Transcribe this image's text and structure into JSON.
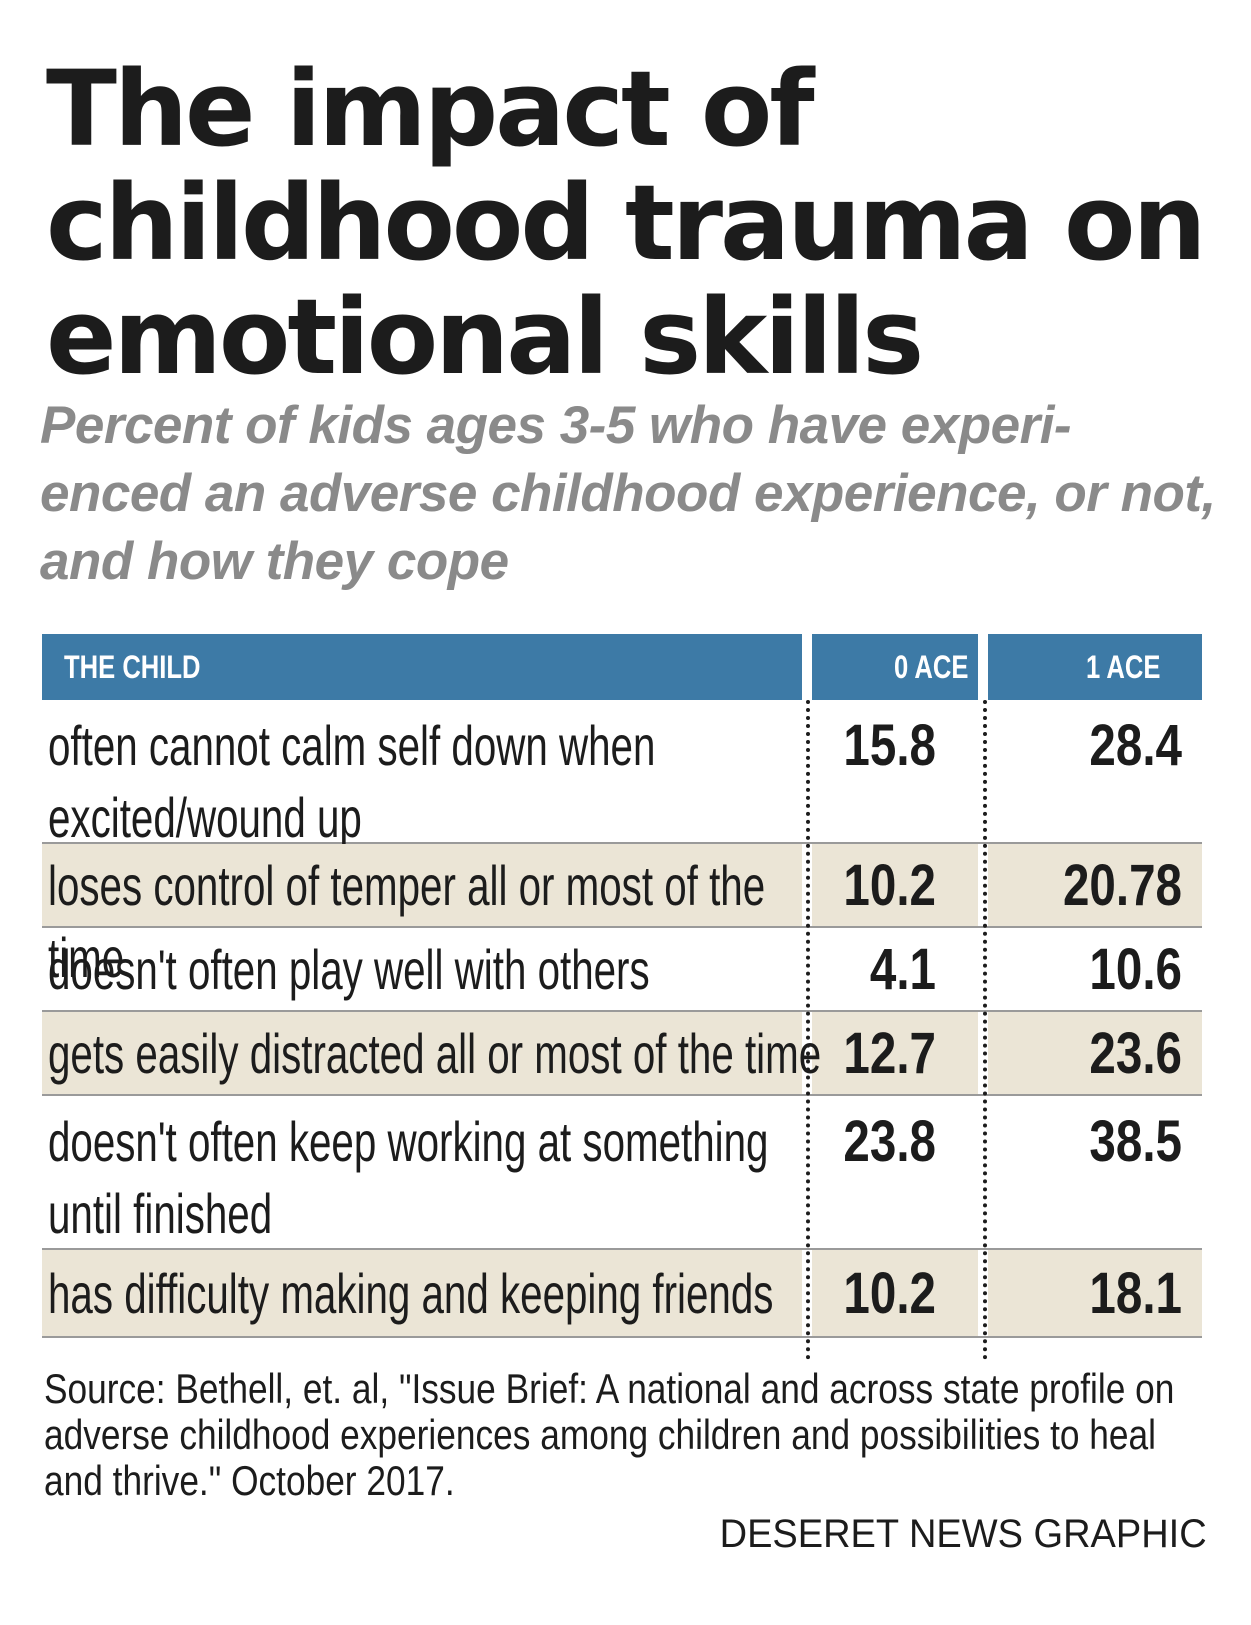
{
  "chart_data": {
    "type": "table",
    "title": "The impact of childhood trauma on emotional skills",
    "subtitle": "Percent of kids ages 3-5 who have experi- enced an adverse childhood experience, or not, and how they cope",
    "columns": [
      "THE CHILD",
      "0 ACE",
      "1 ACE"
    ],
    "rows": [
      {
        "label": "often cannot calm self down when excited/wound up",
        "ace0": "15.8",
        "ace1": "28.4"
      },
      {
        "label": "loses control of temper all or most of the time",
        "ace0": "10.2",
        "ace1": "20.78"
      },
      {
        "label": "doesn't often play well with others",
        "ace0": "4.1",
        "ace1": "10.6"
      },
      {
        "label": "gets easily distracted all or most of the time",
        "ace0": "12.7",
        "ace1": "23.6"
      },
      {
        "label": "doesn't often keep working at something until finished",
        "ace0": "23.8",
        "ace1": "38.5"
      },
      {
        "label": "has difficulty making and keeping friends",
        "ace0": "10.2",
        "ace1": "18.1"
      }
    ],
    "source": "Source: Bethell, et. al, \"Issue Brief: A national and across state profile on adverse childhood experiences among children and possibilities to heal and thrive.\" October 2017.",
    "credit": "DESERET NEWS GRAPHIC"
  },
  "colors": {
    "header_bg": "#3d7aa6",
    "shaded_row": "#ebe5d6",
    "subtitle": "#8a8a8a",
    "text": "#1c1c1c"
  }
}
